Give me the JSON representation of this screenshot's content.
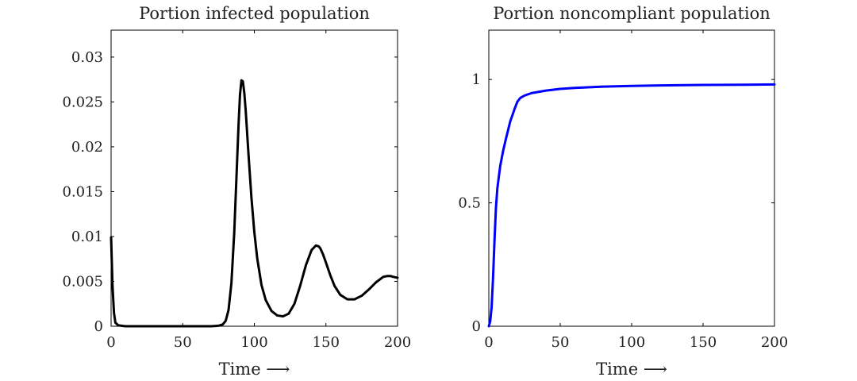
{
  "chart_data": [
    {
      "type": "line",
      "title": "Portion infected population",
      "xlabel": "Time ⟶",
      "ylabel": "",
      "xlim": [
        0,
        200
      ],
      "ylim": [
        0,
        0.033
      ],
      "xticks": [
        0,
        50,
        100,
        150,
        200
      ],
      "xtick_labels": [
        "0",
        "50",
        "100",
        "150",
        "200"
      ],
      "yticks": [
        0,
        0.005,
        0.01,
        0.015,
        0.02,
        0.025,
        0.03
      ],
      "ytick_labels": [
        "0",
        "0.005",
        "0.01",
        "0.015",
        "0.02",
        "0.025",
        "0.03"
      ],
      "grid": false,
      "series": [
        {
          "name": "infected",
          "color": "#000000",
          "x": [
            0,
            1,
            2,
            3,
            5,
            10,
            20,
            40,
            60,
            70,
            75,
            78,
            80,
            82,
            84,
            86,
            88,
            89,
            90,
            91,
            92,
            93,
            94,
            96,
            98,
            100,
            102,
            105,
            108,
            112,
            116,
            120,
            124,
            128,
            132,
            136,
            140,
            143,
            145,
            146,
            148,
            150,
            153,
            156,
            160,
            165,
            170,
            175,
            180,
            185,
            190,
            193,
            195,
            197,
            200
          ],
          "y": [
            0.0099,
            0.0045,
            0.0015,
            0.0004,
            0.0001,
            0,
            0,
            0,
            0,
            0,
            5e-05,
            0.0002,
            0.0006,
            0.0018,
            0.0048,
            0.0105,
            0.0185,
            0.0225,
            0.0258,
            0.0274,
            0.0273,
            0.026,
            0.024,
            0.019,
            0.0143,
            0.0105,
            0.0076,
            0.0046,
            0.0029,
            0.0017,
            0.0012,
            0.0011,
            0.0014,
            0.0025,
            0.0045,
            0.0068,
            0.0085,
            0.009,
            0.0089,
            0.0087,
            0.008,
            0.0071,
            0.0057,
            0.0045,
            0.0035,
            0.003,
            0.003,
            0.0034,
            0.0041,
            0.0049,
            0.0055,
            0.0056,
            0.0056,
            0.0055,
            0.0054
          ]
        }
      ]
    },
    {
      "type": "line",
      "title": "Portion noncompliant population",
      "xlabel": "Time ⟶",
      "ylabel": "",
      "xlim": [
        0,
        200
      ],
      "ylim": [
        0,
        1.2
      ],
      "xticks": [
        0,
        50,
        100,
        150,
        200
      ],
      "xtick_labels": [
        "0",
        "50",
        "100",
        "150",
        "200"
      ],
      "yticks": [
        0,
        0.5,
        1
      ],
      "ytick_labels": [
        "0",
        "0.5",
        "1"
      ],
      "grid": false,
      "series": [
        {
          "name": "noncompliant",
          "color": "#0000ff",
          "x": [
            0,
            1,
            2,
            3,
            4,
            5,
            6,
            8,
            10,
            12,
            15,
            18,
            20,
            22,
            25,
            30,
            40,
            50,
            60,
            80,
            100,
            120,
            150,
            180,
            200
          ],
          "y": [
            0,
            0.02,
            0.08,
            0.2,
            0.35,
            0.48,
            0.56,
            0.65,
            0.71,
            0.76,
            0.83,
            0.88,
            0.91,
            0.925,
            0.935,
            0.945,
            0.955,
            0.962,
            0.966,
            0.971,
            0.974,
            0.976,
            0.978,
            0.979,
            0.98
          ]
        }
      ]
    }
  ]
}
